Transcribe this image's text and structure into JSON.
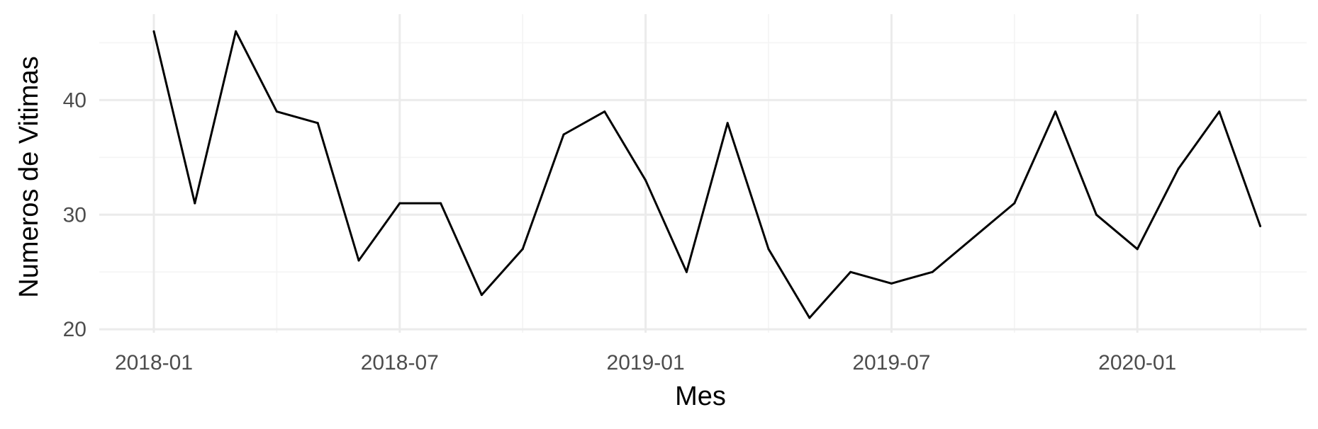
{
  "chart_data": {
    "type": "line",
    "title": "",
    "xlabel": "Mes",
    "ylabel": "Numeros de Vitimas",
    "x": [
      "2018-01",
      "2018-02",
      "2018-03",
      "2018-04",
      "2018-05",
      "2018-06",
      "2018-07",
      "2018-08",
      "2018-09",
      "2018-10",
      "2018-11",
      "2018-12",
      "2019-01",
      "2019-02",
      "2019-03",
      "2019-04",
      "2019-05",
      "2019-06",
      "2019-07",
      "2019-08",
      "2019-09",
      "2019-10",
      "2019-11",
      "2019-12",
      "2020-01",
      "2020-02",
      "2020-03",
      "2020-04"
    ],
    "series": [
      {
        "values": [
          46,
          31,
          46,
          39,
          38,
          26,
          31,
          31,
          23,
          27,
          37,
          39,
          33,
          25,
          38,
          27,
          21,
          25,
          24,
          25,
          28,
          31,
          39,
          30,
          27,
          34,
          39,
          29
        ]
      }
    ],
    "xticks": [
      "2018-01",
      "2018-07",
      "2019-01",
      "2019-07",
      "2020-01"
    ],
    "yticks": [
      20,
      30,
      40
    ],
    "ylim": [
      19.7,
      47.5
    ],
    "grid": true,
    "legend": "none",
    "colors": {
      "line": "#000000",
      "grid_major": "#ebebeb",
      "grid_minor": "#f4f4f4",
      "tick_text": "#4d4d4d",
      "background": "#ffffff"
    }
  }
}
